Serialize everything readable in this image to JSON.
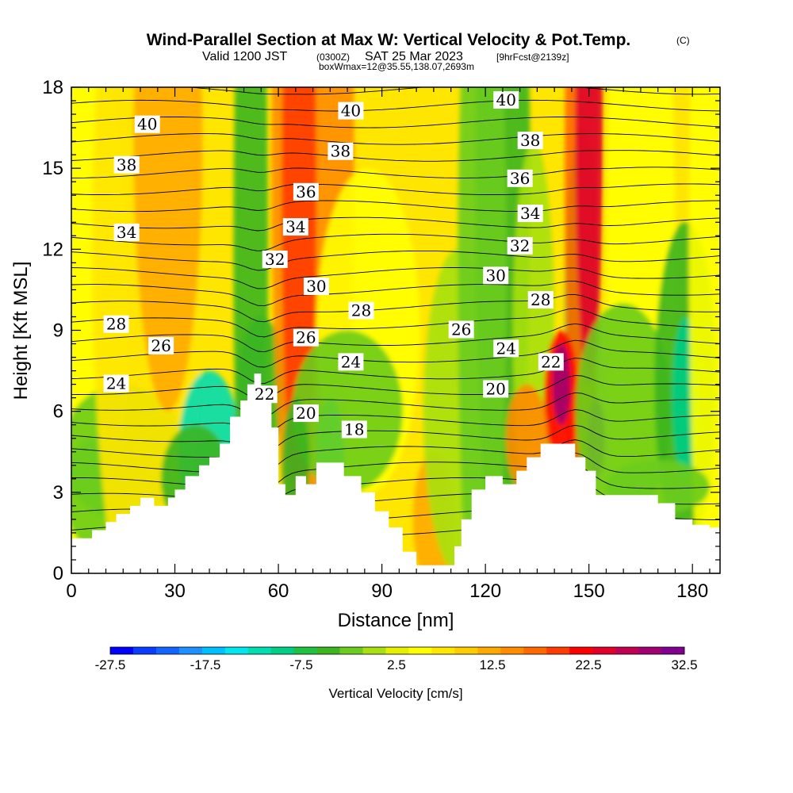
{
  "title": {
    "main": "Wind-Parallel Section at Max W: Vertical Velocity & Pot.Temp.",
    "copyright": "(C)",
    "valid_prefix": "Valid 1200 JST",
    "valid_utc": "(0300Z)",
    "valid_date": "SAT 25 Mar 2023",
    "forecast": "[9hrFcst@2139z]",
    "box_info": "boxWmax=12@35.55,138.07,2693m"
  },
  "chart_data": {
    "type": "heatmap",
    "xlabel": "Distance [nm]",
    "ylabel": "Height [Kft MSL]",
    "xlim": [
      0,
      188
    ],
    "ylim": [
      0,
      18
    ],
    "x_ticks": [
      0,
      30,
      60,
      90,
      120,
      150,
      180
    ],
    "y_ticks": [
      0,
      3,
      6,
      9,
      12,
      15,
      18
    ],
    "colorbar": {
      "label": "Vertical Velocity [cm/s]",
      "tick_labels": [
        "-27.5",
        "-17.5",
        "-7.5",
        "2.5",
        "12.5",
        "22.5",
        "32.5"
      ],
      "levels": [
        -30,
        -27.5,
        -25,
        -22.5,
        -20,
        -17.5,
        -15,
        -12.5,
        -10,
        -7.5,
        -5,
        -2.5,
        0,
        2.5,
        5,
        7.5,
        10,
        12.5,
        15,
        17.5,
        20,
        22.5,
        25,
        27.5,
        30,
        32.5
      ],
      "colors": [
        "#0000ff",
        "#0a3cff",
        "#1464ff",
        "#1e90ff",
        "#00bfff",
        "#00e5ee",
        "#00ddb0",
        "#00cd86",
        "#20c040",
        "#3cb520",
        "#6ccc1c",
        "#a8e010",
        "#e4f000",
        "#ffff00",
        "#ffe600",
        "#ffcc00",
        "#ffaa00",
        "#ff8c00",
        "#ff6a00",
        "#ff3c00",
        "#ff0000",
        "#e0002a",
        "#c00050",
        "#a00070",
        "#800090"
      ]
    },
    "terrain": [
      [
        0,
        1.3
      ],
      [
        6,
        1.3
      ],
      [
        6,
        1.6
      ],
      [
        10,
        1.6
      ],
      [
        10,
        1.9
      ],
      [
        13,
        1.9
      ],
      [
        13,
        2.2
      ],
      [
        17,
        2.2
      ],
      [
        17,
        2.5
      ],
      [
        20,
        2.5
      ],
      [
        20,
        2.8
      ],
      [
        24,
        2.8
      ],
      [
        24,
        2.5
      ],
      [
        28,
        2.5
      ],
      [
        28,
        2.8
      ],
      [
        30,
        2.8
      ],
      [
        30,
        3.1
      ],
      [
        33,
        3.1
      ],
      [
        33,
        3.6
      ],
      [
        37,
        3.6
      ],
      [
        37,
        4.0
      ],
      [
        40,
        4.0
      ],
      [
        40,
        4.3
      ],
      [
        43,
        4.3
      ],
      [
        43,
        4.8
      ],
      [
        46,
        4.8
      ],
      [
        46,
        5.8
      ],
      [
        49,
        5.8
      ],
      [
        49,
        6.4
      ],
      [
        51,
        6.4
      ],
      [
        51,
        7.0
      ],
      [
        53,
        7.0
      ],
      [
        53,
        7.4
      ],
      [
        55,
        7.4
      ],
      [
        55,
        6.4
      ],
      [
        58,
        6.4
      ],
      [
        58,
        5.4
      ],
      [
        60,
        5.4
      ],
      [
        60,
        3.3
      ],
      [
        62,
        3.3
      ],
      [
        62,
        2.9
      ],
      [
        65,
        2.9
      ],
      [
        65,
        3.6
      ],
      [
        68,
        3.6
      ],
      [
        68,
        3.3
      ],
      [
        71,
        3.3
      ],
      [
        71,
        4.1
      ],
      [
        79,
        4.1
      ],
      [
        79,
        3.6
      ],
      [
        84,
        3.6
      ],
      [
        84,
        3.0
      ],
      [
        88,
        3.0
      ],
      [
        88,
        2.3
      ],
      [
        92,
        2.3
      ],
      [
        92,
        1.7
      ],
      [
        96,
        1.7
      ],
      [
        96,
        0.8
      ],
      [
        100,
        0.8
      ],
      [
        100,
        0.3
      ],
      [
        111,
        0.3
      ],
      [
        111,
        1.0
      ],
      [
        113,
        1.0
      ],
      [
        113,
        2.0
      ],
      [
        116,
        2.0
      ],
      [
        116,
        3.1
      ],
      [
        120,
        3.1
      ],
      [
        120,
        3.6
      ],
      [
        125,
        3.6
      ],
      [
        125,
        3.3
      ],
      [
        129,
        3.3
      ],
      [
        129,
        3.8
      ],
      [
        132,
        3.8
      ],
      [
        132,
        4.3
      ],
      [
        136,
        4.3
      ],
      [
        136,
        4.8
      ],
      [
        146,
        4.8
      ],
      [
        146,
        4.3
      ],
      [
        149,
        4.3
      ],
      [
        149,
        3.8
      ],
      [
        152,
        3.8
      ],
      [
        152,
        2.9
      ],
      [
        158,
        2.9
      ],
      [
        158,
        2.9
      ],
      [
        170,
        2.9
      ],
      [
        170,
        2.6
      ],
      [
        175,
        2.6
      ],
      [
        175,
        2.0
      ],
      [
        180,
        2.0
      ],
      [
        180,
        1.8
      ],
      [
        185,
        1.8
      ],
      [
        185,
        1.7
      ],
      [
        188,
        1.7
      ]
    ],
    "contour_labels": [
      {
        "text": "40",
        "x": 22,
        "y": 16.6
      },
      {
        "text": "38",
        "x": 16,
        "y": 15.1
      },
      {
        "text": "34",
        "x": 16,
        "y": 12.6
      },
      {
        "text": "28",
        "x": 13,
        "y": 9.2
      },
      {
        "text": "26",
        "x": 26,
        "y": 8.4
      },
      {
        "text": "24",
        "x": 13,
        "y": 7.0
      },
      {
        "text": "40",
        "x": 81,
        "y": 17.1
      },
      {
        "text": "38",
        "x": 78,
        "y": 15.6
      },
      {
        "text": "36",
        "x": 68,
        "y": 14.1
      },
      {
        "text": "34",
        "x": 65,
        "y": 12.8
      },
      {
        "text": "32",
        "x": 59,
        "y": 11.6
      },
      {
        "text": "30",
        "x": 71,
        "y": 10.6
      },
      {
        "text": "28",
        "x": 84,
        "y": 9.7
      },
      {
        "text": "26",
        "x": 68,
        "y": 8.7
      },
      {
        "text": "24",
        "x": 81,
        "y": 7.8
      },
      {
        "text": "22",
        "x": 56,
        "y": 6.6
      },
      {
        "text": "20",
        "x": 68,
        "y": 5.9
      },
      {
        "text": "18",
        "x": 82,
        "y": 5.3
      },
      {
        "text": "40",
        "x": 126,
        "y": 17.5
      },
      {
        "text": "38",
        "x": 133,
        "y": 16.0
      },
      {
        "text": "36",
        "x": 130,
        "y": 14.6
      },
      {
        "text": "34",
        "x": 133,
        "y": 13.3
      },
      {
        "text": "32",
        "x": 130,
        "y": 12.1
      },
      {
        "text": "30",
        "x": 123,
        "y": 11.0
      },
      {
        "text": "28",
        "x": 136,
        "y": 10.1
      },
      {
        "text": "26",
        "x": 113,
        "y": 9.0
      },
      {
        "text": "24",
        "x": 126,
        "y": 8.3
      },
      {
        "text": "22",
        "x": 139,
        "y": 7.8
      },
      {
        "text": "20",
        "x": 123,
        "y": 6.8
      }
    ]
  }
}
